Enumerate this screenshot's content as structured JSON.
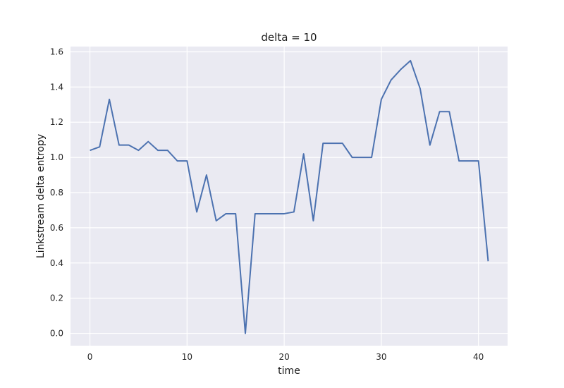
{
  "chart_data": {
    "type": "line",
    "title": "delta = 10",
    "xlabel": "time",
    "ylabel": "Linkstream delta entropy",
    "xlim": [
      -2,
      43
    ],
    "ylim": [
      -0.07,
      1.63
    ],
    "xticks": [
      0,
      10,
      20,
      30,
      40
    ],
    "yticks": [
      0.0,
      0.2,
      0.4,
      0.6,
      0.8,
      1.0,
      1.2,
      1.4,
      1.6
    ],
    "grid": true,
    "colors": {
      "background": "#eaeaf2",
      "grid": "#ffffff",
      "line": "#4c72b0"
    },
    "series": [
      {
        "x": [
          0,
          1,
          2,
          3,
          4,
          5,
          6,
          7,
          8,
          9,
          10,
          11,
          12,
          13,
          14,
          15,
          16,
          17,
          18,
          19,
          20,
          21,
          22,
          23,
          24,
          25,
          26,
          27,
          28,
          29,
          30,
          31,
          32,
          33,
          34,
          35,
          36,
          37,
          38,
          39,
          40,
          41
        ],
        "values": [
          1.04,
          1.06,
          1.33,
          1.07,
          1.07,
          1.04,
          1.09,
          1.04,
          1.04,
          0.98,
          0.98,
          0.69,
          0.9,
          0.64,
          0.68,
          0.68,
          0.0,
          0.68,
          0.68,
          0.68,
          0.68,
          0.69,
          1.02,
          0.64,
          1.08,
          1.08,
          1.08,
          1.0,
          1.0,
          1.0,
          1.33,
          1.44,
          1.5,
          1.55,
          1.39,
          1.07,
          1.26,
          1.26,
          0.98,
          0.98,
          0.98,
          0.41
        ]
      }
    ]
  }
}
